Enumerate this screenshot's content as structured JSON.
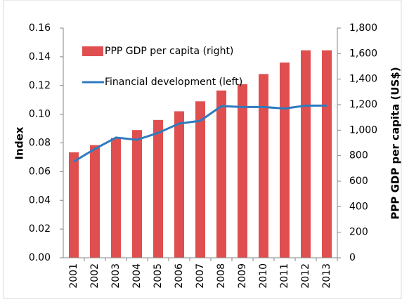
{
  "chart_data": {
    "type": "combo",
    "y_label": "Index",
    "y2_label": "PPP GDP per capita (US$)",
    "categories": [
      "2001",
      "2002",
      "2003",
      "2004",
      "2005",
      "2006",
      "2007",
      "2008",
      "2009",
      "2010",
      "2011",
      "2012",
      "2013"
    ],
    "series": [
      {
        "name": "PPP GDP per capita (right)",
        "type": "bar",
        "axis": "y2",
        "color": "#e04f4f",
        "values": [
          827,
          883,
          939,
          1001,
          1080,
          1148,
          1226,
          1311,
          1361,
          1440,
          1530,
          1626,
          1626
        ]
      },
      {
        "name": "Financial development (left)",
        "type": "line",
        "axis": "y",
        "color": "#2e7bbf",
        "values": [
          0.067,
          0.0758,
          0.0837,
          0.0822,
          0.087,
          0.0935,
          0.0954,
          0.1057,
          0.105,
          0.105,
          0.104,
          0.106,
          0.106
        ]
      }
    ],
    "ylim": [
      0,
      0.16
    ],
    "yticks": [
      {
        "value": 0,
        "label": "0.00"
      },
      {
        "value": 0.02,
        "label": "0.02"
      },
      {
        "value": 0.04,
        "label": "0.04"
      },
      {
        "value": 0.06,
        "label": "0.06"
      },
      {
        "value": 0.08,
        "label": "0.08"
      },
      {
        "value": 0.1,
        "label": "0.10"
      },
      {
        "value": 0.12,
        "label": "0.12"
      },
      {
        "value": 0.14,
        "label": "0.14"
      },
      {
        "value": 0.16,
        "label": "0.16"
      }
    ],
    "y2lim": [
      0,
      1800
    ],
    "y2ticks": [
      0,
      200,
      400,
      600,
      800,
      {
        "value": 1000,
        "label": "1,000"
      },
      {
        "value": 1200,
        "label": "1,200"
      },
      {
        "value": 1400,
        "label": "1,400"
      },
      {
        "value": 1600,
        "label": "1,600"
      },
      {
        "value": 1800,
        "label": "1,800"
      }
    ],
    "grid": false,
    "legend": "top-left"
  }
}
